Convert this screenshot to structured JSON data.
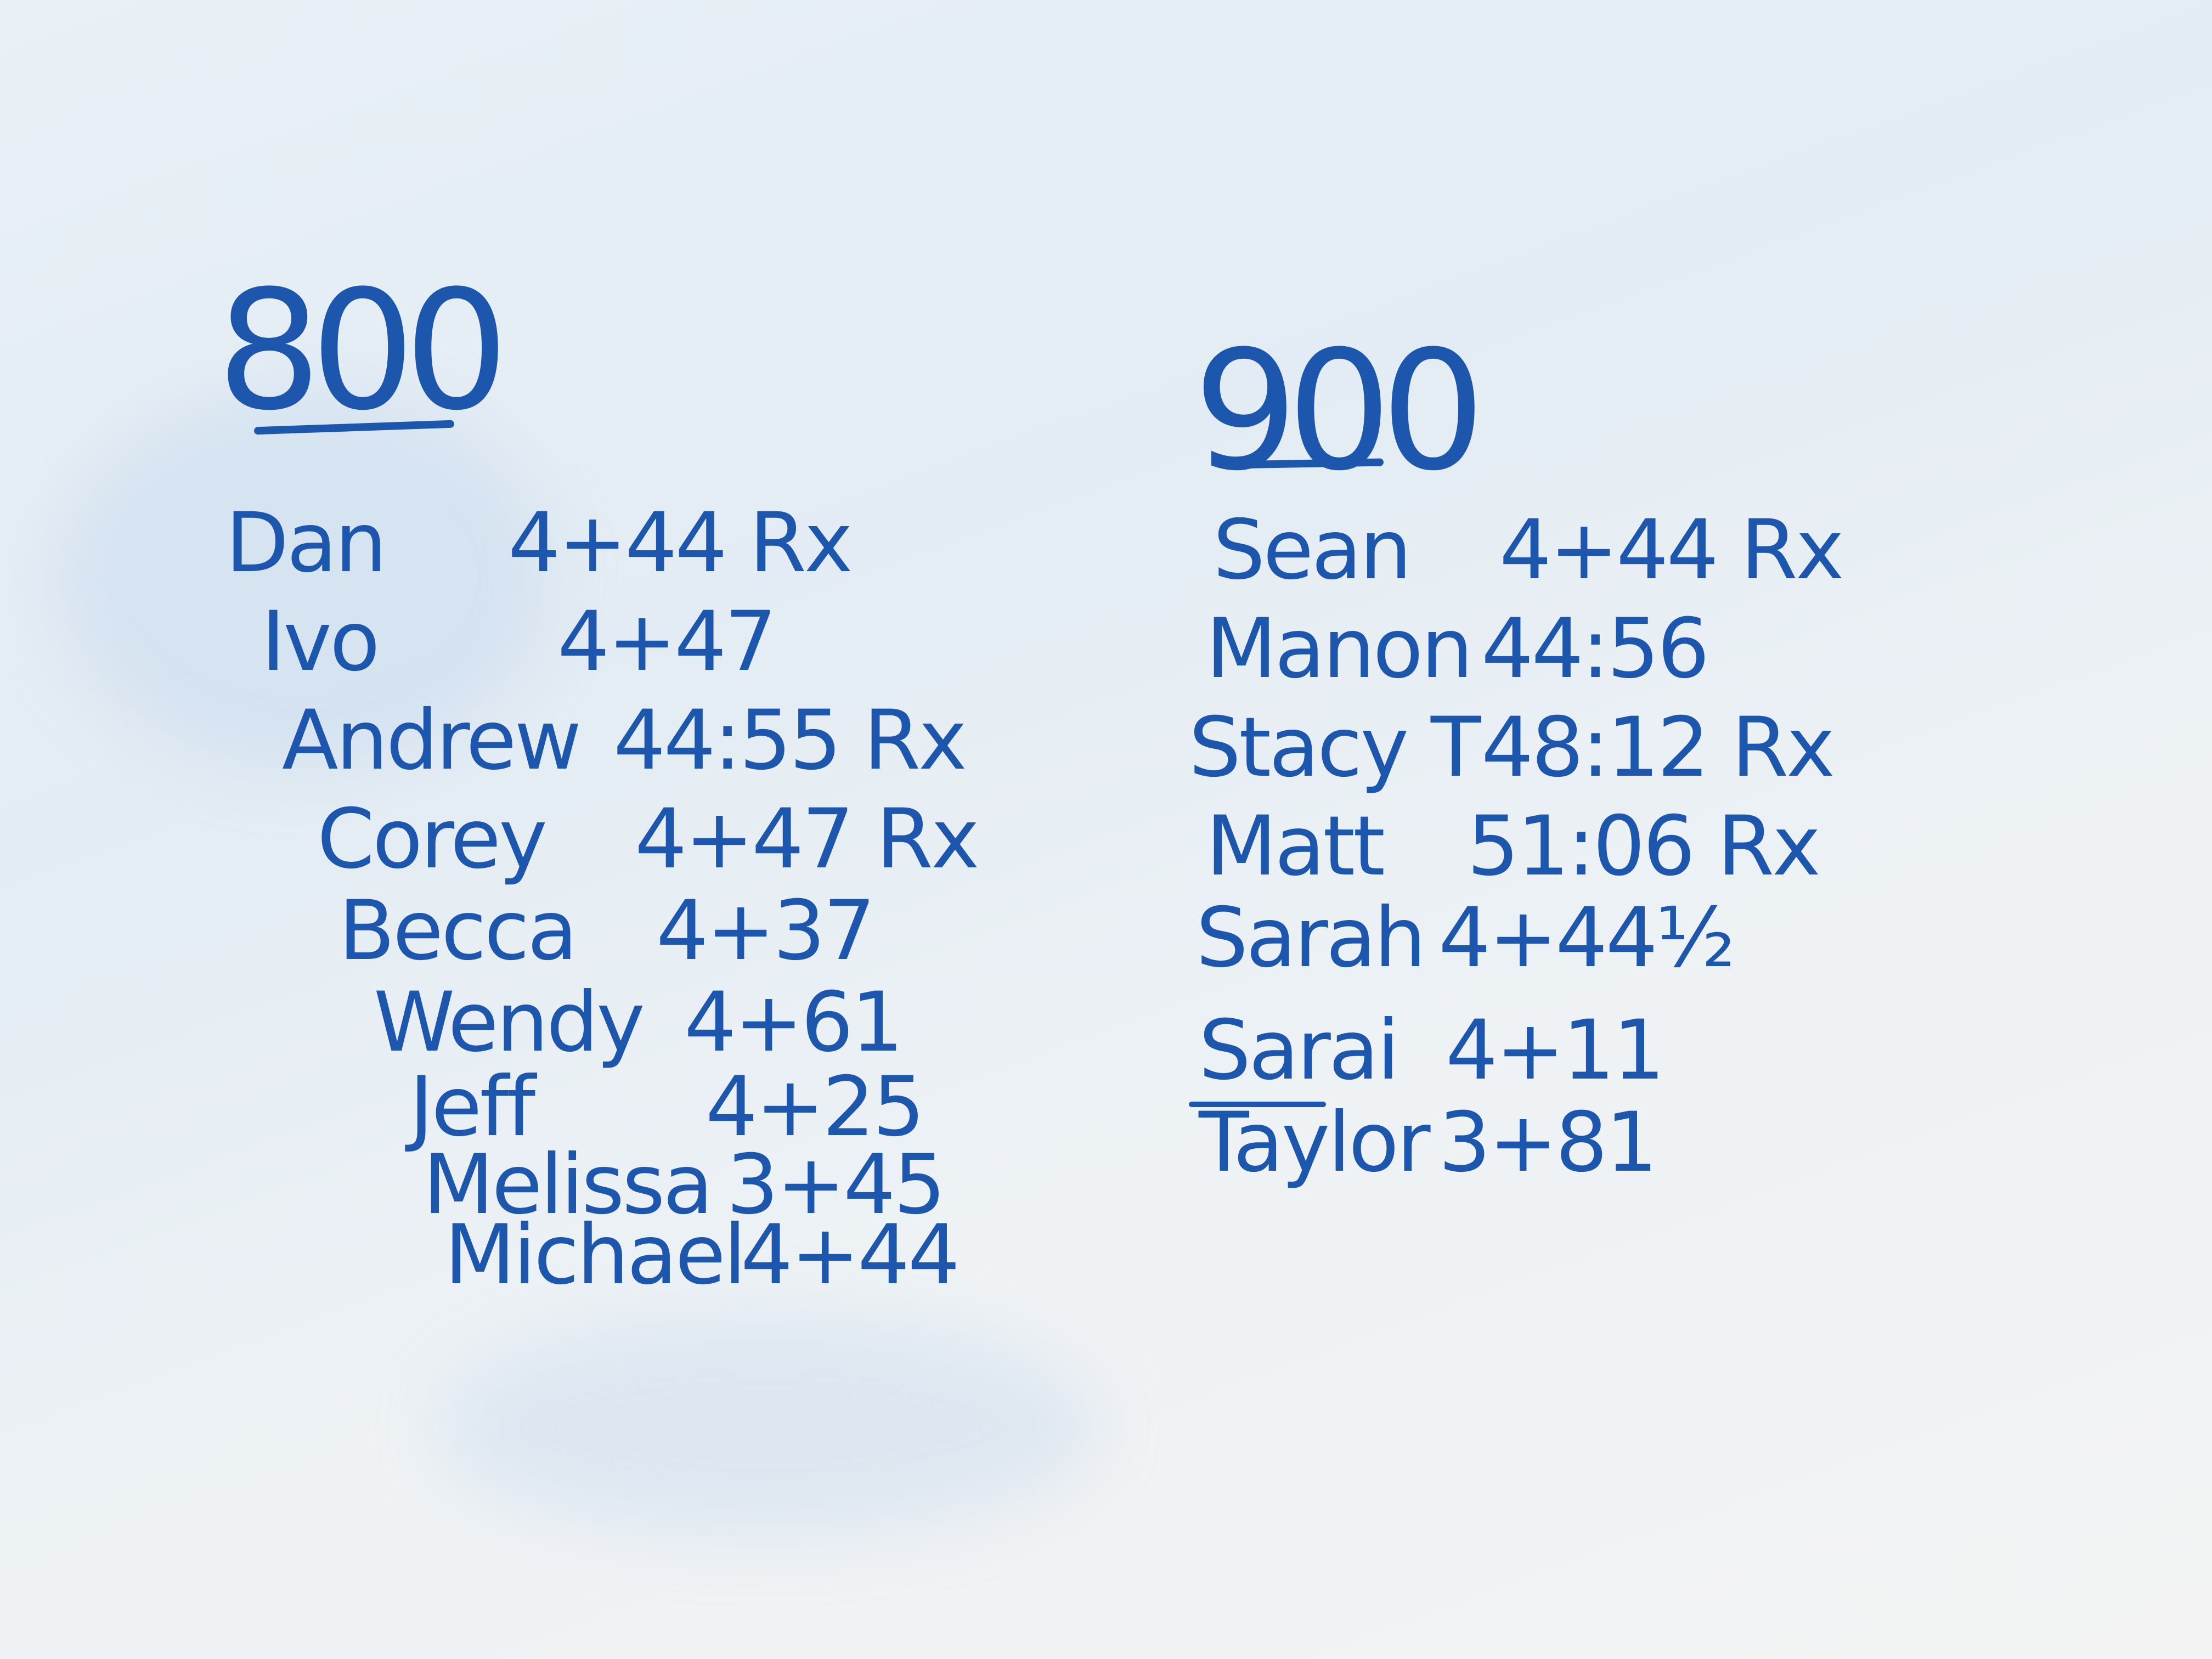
{
  "ink_color": "#1d56ad",
  "columns": [
    {
      "heading": "800",
      "entries": [
        {
          "name": "Dan",
          "score": "4+44 Rx"
        },
        {
          "name": "Ivo",
          "score": "4+47"
        },
        {
          "name": "Andrew",
          "score": "44:55 Rx"
        },
        {
          "name": "Corey",
          "score": "4+47 Rx"
        },
        {
          "name": "Becca",
          "score": "4+37"
        },
        {
          "name": "Wendy",
          "score": "4+61"
        },
        {
          "name": "Jeff",
          "score": "4+25"
        },
        {
          "name": "Melissa",
          "score": "3+45"
        },
        {
          "name": "Michael",
          "score": "4+44"
        }
      ]
    },
    {
      "heading": "900",
      "entries": [
        {
          "name": "Sean",
          "score": "4+44 Rx"
        },
        {
          "name": "Manon",
          "score": "44:56"
        },
        {
          "name": "Stacy T",
          "score": "48:12 Rx"
        },
        {
          "name": "Matt",
          "score": "51:06 Rx"
        },
        {
          "name": "Sarah",
          "score": "4+44½"
        },
        {
          "name": "Sarai",
          "score": "4+11"
        },
        {
          "name": "Taylor",
          "score": "3+81"
        }
      ]
    }
  ]
}
